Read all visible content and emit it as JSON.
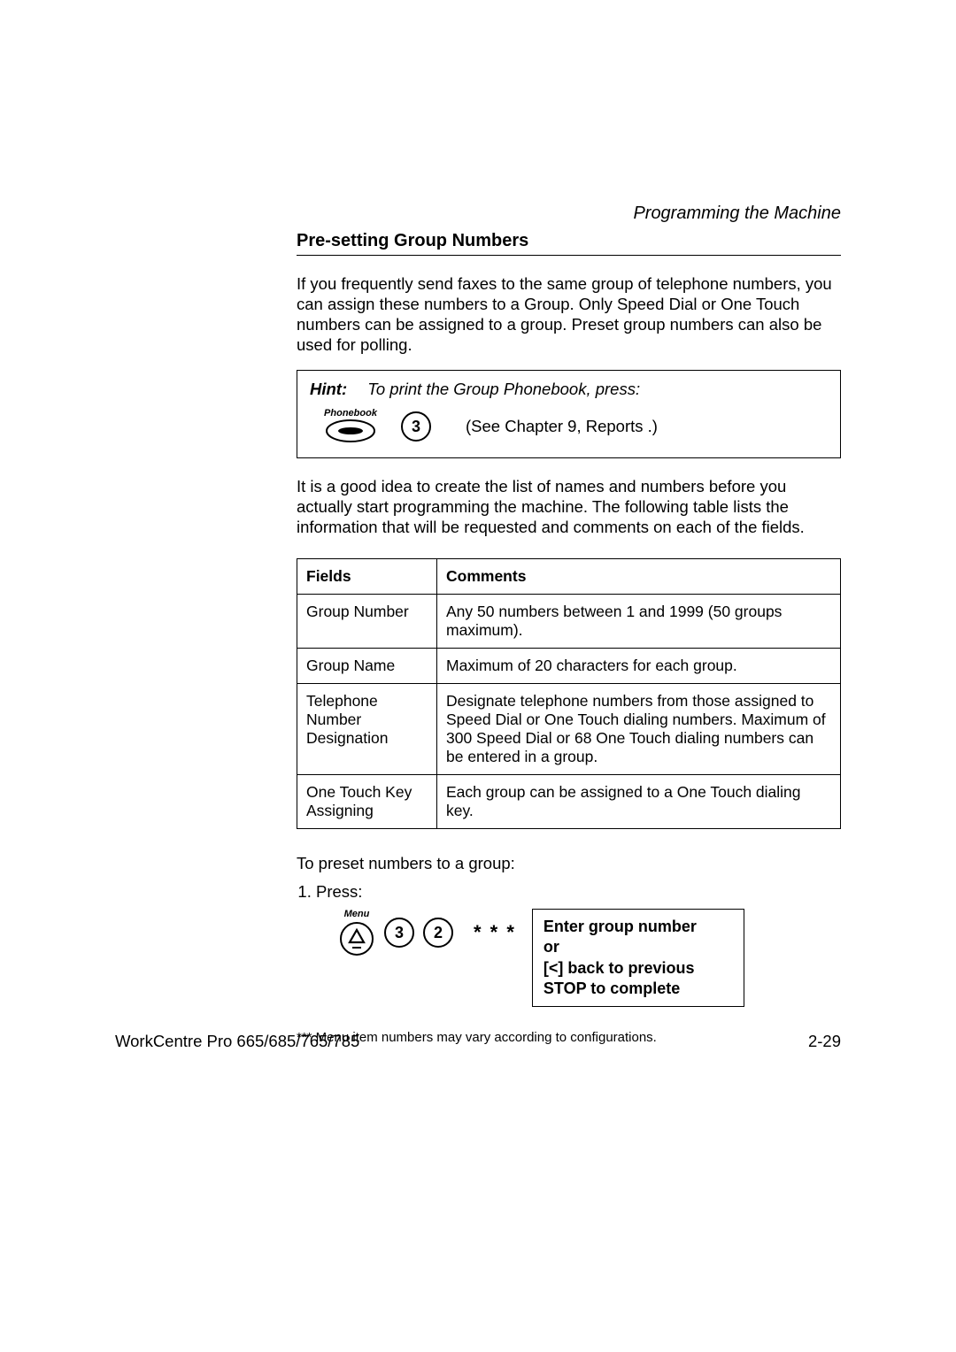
{
  "running_head": "Programming the Machine",
  "section_title": "Pre-setting Group Numbers",
  "intro_para": "If you frequently send faxes to the same group of telephone numbers, you can assign these numbers to a Group. Only Speed Dial or One Touch numbers can be assigned to a group. Preset group numbers can also be used for polling.",
  "hint": {
    "label": "Hint:",
    "text": "To print the Group Phonebook, press:",
    "phonebook_label": "Phonebook",
    "key_digit": "3",
    "see_ref": "(See Chapter 9,  Reports .)"
  },
  "post_hint_para": "It is a good idea to create the list of names and numbers before you actually start programming the machine. The following table lists the information that will be requested and comments on each of the fields.",
  "table": {
    "columns": [
      "Fields",
      "Comments"
    ],
    "rows": [
      [
        "Group Number",
        "Any 50 numbers between 1 and 1999 (50 groups maximum)."
      ],
      [
        "Group Name",
        "Maximum of 20 characters for each group."
      ],
      [
        "Telephone Number Designation",
        "Designate telephone numbers from those assigned to Speed Dial or One Touch dialing numbers. Maximum of 300 Speed Dial or 68 One Touch dialing numbers can be entered in a group."
      ],
      [
        "One Touch Key Assigning",
        "Each group can be assigned to a One Touch dialing key."
      ]
    ]
  },
  "steps_lead": "To preset numbers to a group:",
  "step1": {
    "num": "1.",
    "label": "Press:",
    "menu_label": "Menu",
    "key_a": "3",
    "key_b": "2",
    "asterisks": "* * *",
    "lcd_lines": "Enter group number\nor\n[<] back to previous\nSTOP to complete"
  },
  "footnote": "*** Menu item numbers may vary according to configurations.",
  "footer_left": "WorkCentre Pro 665/685/765/785",
  "footer_right": "2-29",
  "colors": {
    "text": "#000000",
    "bg": "#ffffff",
    "border": "#000000"
  }
}
